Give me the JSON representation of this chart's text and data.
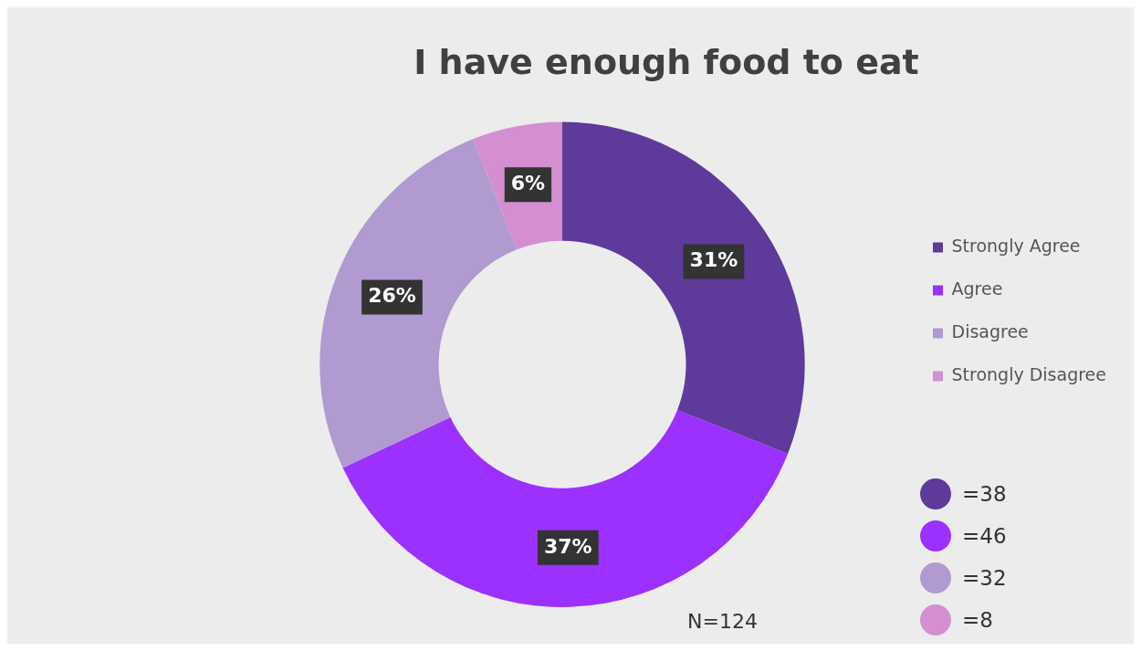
{
  "chart_data": {
    "type": "donut",
    "title": "I have enough food to eat",
    "categories": [
      "Strongly Agree",
      "Agree",
      "Disagree",
      "Strongly Disagree"
    ],
    "values": [
      31,
      37,
      26,
      6
    ],
    "value_labels": [
      "31%",
      "37%",
      "26%",
      "6%"
    ],
    "colors": [
      "#5e3a9a",
      "#9b30ff",
      "#b09ad0",
      "#d48fd0"
    ],
    "legend": "right",
    "annotations": [
      "=38",
      "=46",
      "=32",
      "=8",
      "N=124"
    ]
  }
}
